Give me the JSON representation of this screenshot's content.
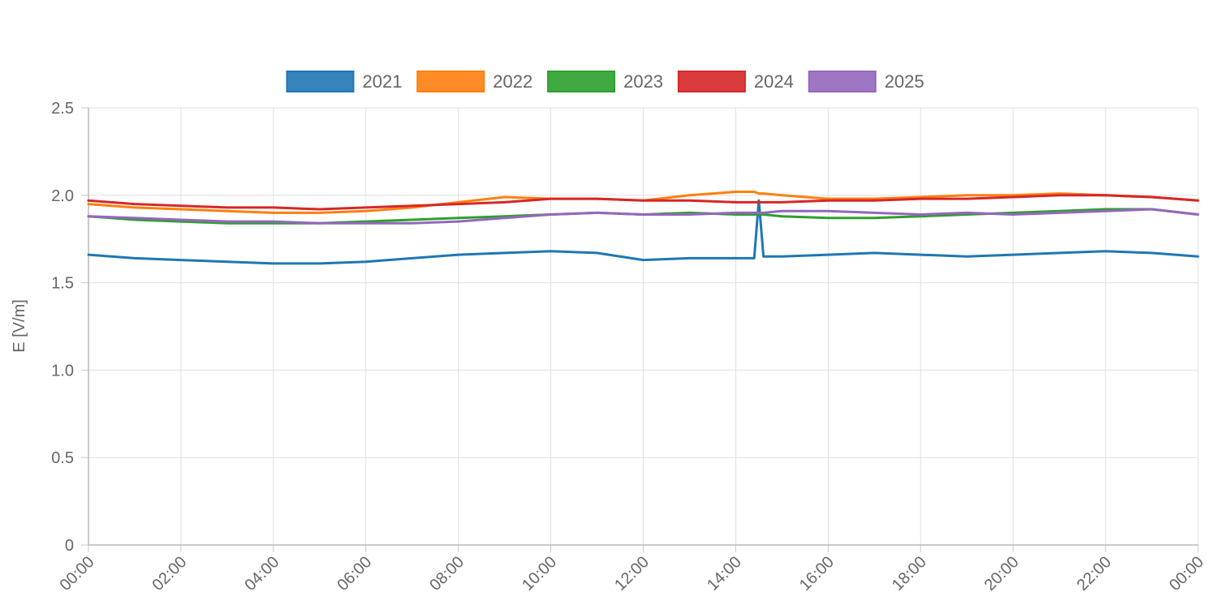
{
  "chart_data": {
    "type": "line",
    "title": "",
    "xlabel": "",
    "ylabel": "E [V/m]",
    "ylim": [
      0,
      2.5
    ],
    "y_ticks": [
      "0",
      "0.5",
      "1.0",
      "1.5",
      "2.0",
      "2.5"
    ],
    "x_ticks": [
      "00:00",
      "02:00",
      "04:00",
      "06:00",
      "08:00",
      "10:00",
      "12:00",
      "14:00",
      "16:00",
      "18:00",
      "20:00",
      "22:00",
      "00:00"
    ],
    "x_range_hours": [
      0,
      24
    ],
    "grid": true,
    "legend_position": "top-center",
    "x": [
      0,
      1,
      2,
      3,
      4,
      5,
      6,
      7,
      8,
      9,
      10,
      11,
      12,
      13,
      14,
      14.4,
      14.5,
      14.6,
      15,
      16,
      17,
      18,
      19,
      20,
      21,
      22,
      23,
      24
    ],
    "series": [
      {
        "name": "2021",
        "color": "#1f77b4",
        "values": [
          1.66,
          1.64,
          1.63,
          1.62,
          1.61,
          1.61,
          1.62,
          1.64,
          1.66,
          1.67,
          1.68,
          1.67,
          1.63,
          1.64,
          1.64,
          1.64,
          1.97,
          1.65,
          1.65,
          1.66,
          1.67,
          1.66,
          1.65,
          1.66,
          1.67,
          1.68,
          1.67,
          1.65
        ]
      },
      {
        "name": "2022",
        "color": "#ff7f0e",
        "values": [
          1.95,
          1.93,
          1.92,
          1.91,
          1.9,
          1.9,
          1.91,
          1.93,
          1.96,
          1.99,
          1.98,
          1.98,
          1.97,
          2.0,
          2.02,
          2.02,
          2.01,
          2.01,
          2.0,
          1.98,
          1.98,
          1.99,
          2.0,
          2.0,
          2.01,
          2.0,
          1.99,
          1.97
        ]
      },
      {
        "name": "2023",
        "color": "#2ca02c",
        "values": [
          1.88,
          1.86,
          1.85,
          1.84,
          1.84,
          1.84,
          1.85,
          1.86,
          1.87,
          1.88,
          1.89,
          1.9,
          1.89,
          1.9,
          1.89,
          1.89,
          1.89,
          1.89,
          1.88,
          1.87,
          1.87,
          1.88,
          1.89,
          1.9,
          1.91,
          1.92,
          1.92,
          1.89
        ]
      },
      {
        "name": "2024",
        "color": "#d62728",
        "values": [
          1.97,
          1.95,
          1.94,
          1.93,
          1.93,
          1.92,
          1.93,
          1.94,
          1.95,
          1.96,
          1.98,
          1.98,
          1.97,
          1.97,
          1.96,
          1.96,
          1.96,
          1.96,
          1.96,
          1.97,
          1.97,
          1.98,
          1.98,
          1.99,
          2.0,
          2.0,
          1.99,
          1.97
        ]
      },
      {
        "name": "2025",
        "color": "#9467bd",
        "values": [
          1.88,
          1.87,
          1.86,
          1.85,
          1.85,
          1.84,
          1.84,
          1.84,
          1.85,
          1.87,
          1.89,
          1.9,
          1.89,
          1.89,
          1.9,
          1.9,
          1.9,
          1.9,
          1.91,
          1.91,
          1.9,
          1.89,
          1.9,
          1.89,
          1.9,
          1.91,
          1.92,
          1.89
        ]
      }
    ]
  }
}
